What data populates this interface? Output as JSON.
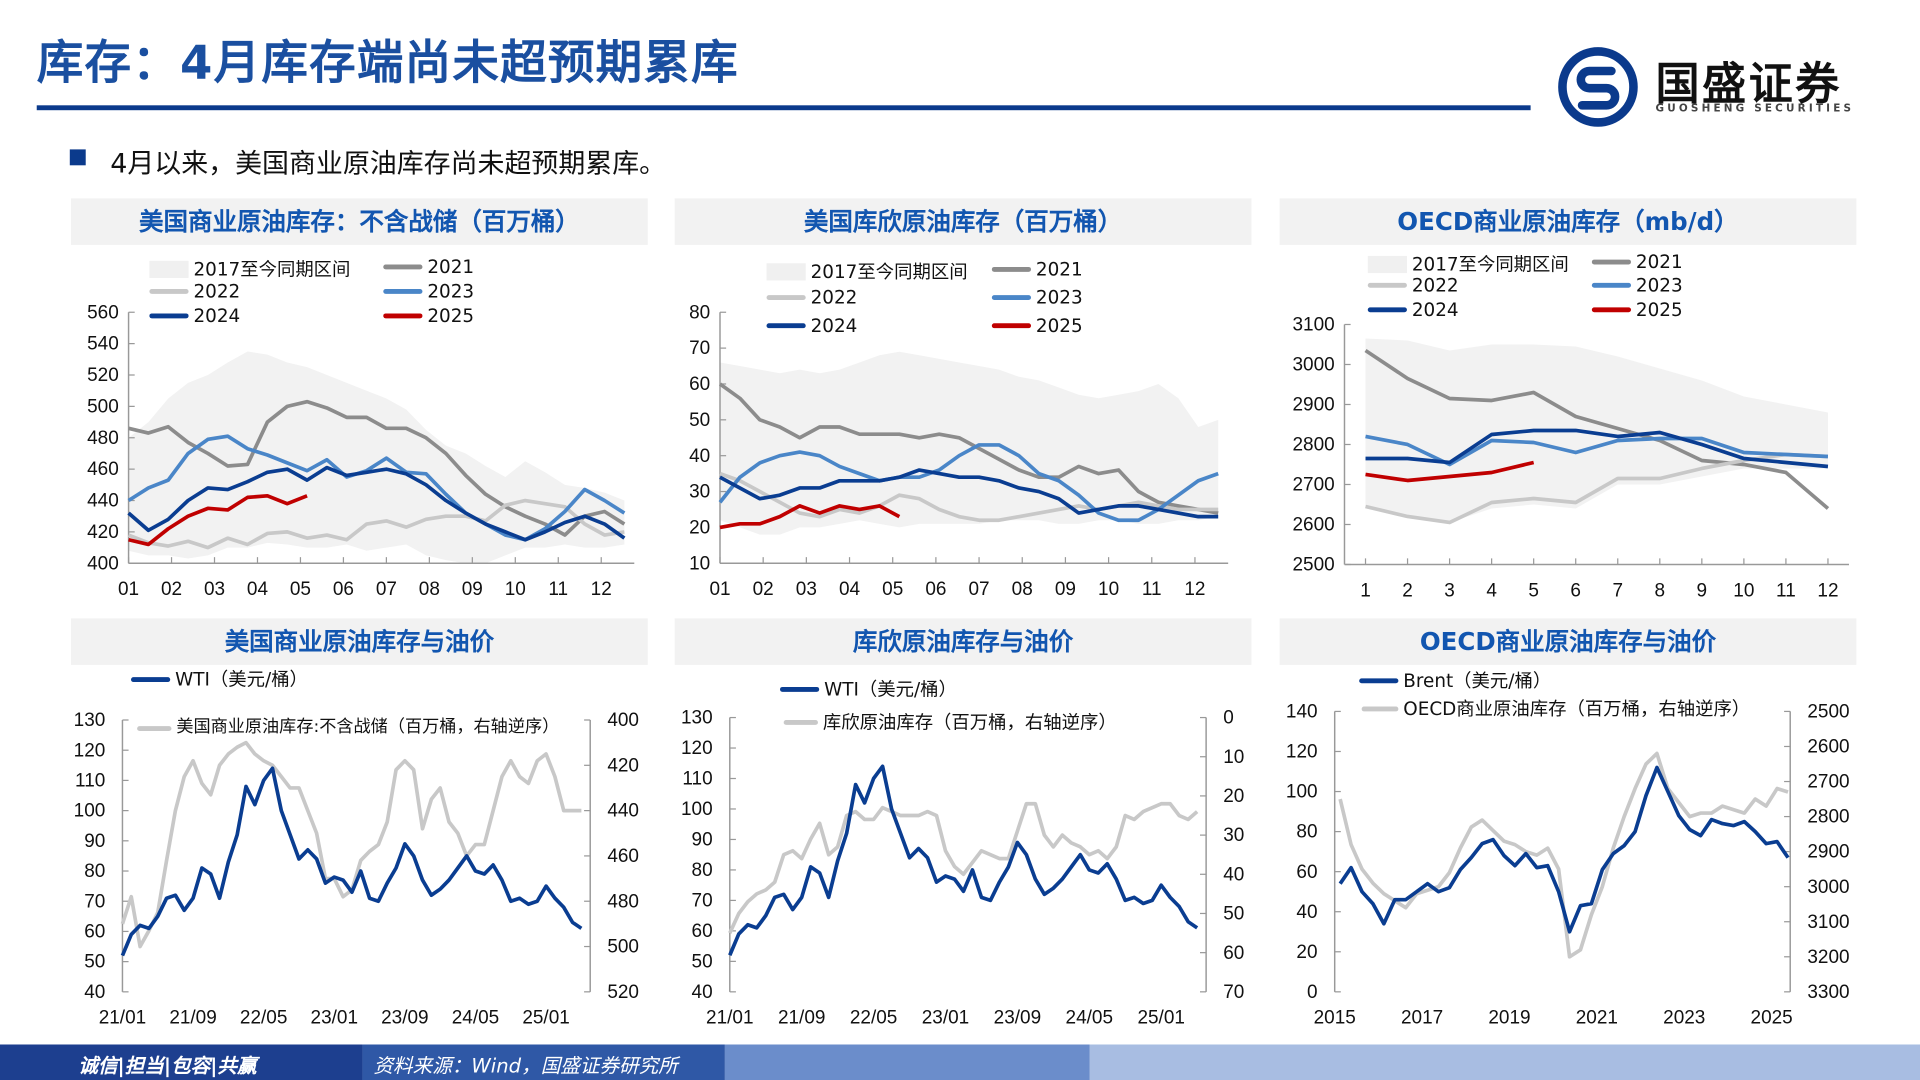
{
  "header": {
    "title": "库存：4月库存端尚未超预期累库",
    "logo_name": "国盛证券",
    "logo_en": "GUOSHENG SECURITIES",
    "accent_color": "#0b3a8c"
  },
  "bullet": "4月以来，美国商业原油库存尚未超预期累库。",
  "footer": {
    "motto": "诚信|担当|包容|共赢",
    "source": "资料来源：Wind，国盛证券研究所"
  },
  "legend_labels": {
    "band": "2017至今同期区间",
    "y2021": "2021",
    "y2022": "2022",
    "y2023": "2023",
    "y2024": "2024",
    "y2025": "2025",
    "wti": "WTI（美元/桶）",
    "brent": "Brent（美元/桶）",
    "us_inv": "美国商业原油库存:不含战储（百万桶，右轴逆序）",
    "cushing_inv": "库欣原油库存（百万桶，右轴逆序）",
    "oecd_inv": "OECD商业原油库存（百万桶，右轴逆序）"
  },
  "colors": {
    "band": "#f2f2f2",
    "y2021": "#8c8c8c",
    "y2022": "#c8c8c8",
    "y2023": "#4a86c8",
    "y2024": "#0a3d91",
    "y2025": "#c00000",
    "price": "#0a3d91",
    "inventory": "#c8c8c8"
  },
  "chart_data": [
    {
      "type": "line",
      "title": "美国商业原油库存：不含战储（百万桶）",
      "x_tick_labels": [
        "01",
        "02",
        "03",
        "04",
        "05",
        "06",
        "07",
        "08",
        "09",
        "10",
        "11",
        "12"
      ],
      "ylim": [
        400,
        560
      ],
      "y_ticks": [
        400,
        420,
        440,
        460,
        480,
        500,
        520,
        540,
        560
      ],
      "frequency": "biweekly",
      "band": {
        "name": "2017至今同期区间",
        "max": [
          480,
          490,
          505,
          515,
          520,
          528,
          535,
          533,
          528,
          525,
          520,
          515,
          510,
          505,
          498,
          485,
          475,
          470,
          462,
          455,
          465,
          458,
          450,
          448,
          445,
          440
        ],
        "min": [
          408,
          405,
          405,
          403,
          405,
          410,
          410,
          413,
          412,
          410,
          410,
          412,
          408,
          410,
          412,
          405,
          402,
          400,
          400,
          405,
          410,
          410,
          412,
          410,
          410,
          412
        ]
      },
      "series": [
        {
          "name": "2021",
          "values": [
            486,
            483,
            487,
            477,
            470,
            462,
            463,
            490,
            500,
            503,
            499,
            493,
            493,
            486,
            486,
            480,
            470,
            456,
            444,
            436,
            430,
            425,
            418,
            430,
            433,
            425
          ]
        },
        {
          "name": "2022",
          "values": [
            418,
            413,
            411,
            414,
            410,
            416,
            412,
            419,
            420,
            416,
            418,
            415,
            425,
            427,
            423,
            428,
            430,
            430,
            427,
            437,
            440,
            438,
            436,
            425,
            418,
            420
          ]
        },
        {
          "name": "2023",
          "values": [
            440,
            448,
            453,
            470,
            479,
            481,
            473,
            469,
            464,
            459,
            466,
            455,
            459,
            467,
            458,
            457,
            444,
            432,
            425,
            418,
            415,
            422,
            433,
            447,
            440,
            432
          ]
        },
        {
          "name": "2024",
          "values": [
            432,
            421,
            428,
            440,
            448,
            447,
            452,
            458,
            460,
            453,
            461,
            456,
            458,
            460,
            457,
            450,
            440,
            432,
            425,
            420,
            415,
            420,
            426,
            430,
            425,
            416
          ]
        },
        {
          "name": "2025",
          "values": [
            415,
            412,
            422,
            430,
            435,
            434,
            442,
            443,
            438,
            443
          ]
        }
      ]
    },
    {
      "type": "line",
      "title": "美国库欣原油库存（百万桶）",
      "x_tick_labels": [
        "01",
        "02",
        "03",
        "04",
        "05",
        "06",
        "07",
        "08",
        "09",
        "10",
        "11",
        "12"
      ],
      "ylim": [
        10,
        80
      ],
      "y_ticks": [
        10,
        20,
        30,
        40,
        50,
        60,
        70,
        80
      ],
      "frequency": "biweekly",
      "band": {
        "name": "2017至今同期区间",
        "max": [
          66,
          65,
          64,
          63,
          64,
          63,
          64,
          66,
          68,
          69,
          68,
          67,
          66,
          65,
          64,
          62,
          61,
          59,
          57,
          56,
          57,
          58,
          60,
          56,
          48,
          50
        ],
        "min": [
          22,
          20,
          18,
          18,
          20,
          20,
          21,
          22,
          21,
          20,
          21,
          21,
          21,
          21,
          22,
          22,
          22,
          21,
          21,
          22,
          22,
          21,
          21,
          22,
          22,
          23
        ]
      },
      "series": [
        {
          "name": "2021",
          "values": [
            60,
            56,
            50,
            48,
            45,
            48,
            48,
            46,
            46,
            46,
            45,
            46,
            45,
            42,
            39,
            36,
            34,
            34,
            37,
            35,
            36,
            30,
            27,
            26,
            25,
            24
          ]
        },
        {
          "name": "2022",
          "values": [
            35,
            33,
            30,
            27,
            24,
            23,
            25,
            24,
            26,
            29,
            28,
            25,
            23,
            22,
            22,
            23,
            24,
            25,
            26,
            25,
            26,
            27,
            26,
            25,
            25,
            25
          ]
        },
        {
          "name": "2023",
          "values": [
            27,
            34,
            38,
            40,
            41,
            40,
            37,
            35,
            33,
            34,
            34,
            36,
            40,
            43,
            43,
            40,
            35,
            33,
            29,
            24,
            22,
            22,
            25,
            29,
            33,
            35
          ]
        },
        {
          "name": "2024",
          "values": [
            34,
            31,
            28,
            29,
            31,
            31,
            33,
            33,
            33,
            34,
            36,
            35,
            34,
            34,
            33,
            31,
            30,
            28,
            24,
            25,
            26,
            26,
            25,
            24,
            23,
            23
          ]
        },
        {
          "name": "2025",
          "values": [
            20,
            21,
            21,
            23,
            26,
            24,
            26,
            25,
            26,
            23
          ]
        }
      ]
    },
    {
      "type": "line",
      "title": "OECD商业原油库存（mb/d）",
      "x_tick_labels": [
        "1",
        "2",
        "3",
        "4",
        "5",
        "6",
        "7",
        "8",
        "9",
        "10",
        "11",
        "12"
      ],
      "ylim": [
        2500,
        3100
      ],
      "y_ticks": [
        2500,
        2600,
        2700,
        2800,
        2900,
        3000,
        3100
      ],
      "frequency": "monthly",
      "band": {
        "name": "2017至今同期区间",
        "max": [
          3065,
          3060,
          3035,
          3050,
          3050,
          3045,
          3020,
          2990,
          2960,
          2920,
          2900,
          2880
        ],
        "min": [
          2645,
          2620,
          2605,
          2640,
          2650,
          2640,
          2700,
          2700,
          2720,
          2740,
          2740,
          2740
        ]
      },
      "series": [
        {
          "name": "2021",
          "values": [
            3035,
            2965,
            2915,
            2910,
            2930,
            2870,
            2840,
            2810,
            2760,
            2750,
            2730,
            2640
          ]
        },
        {
          "name": "2022",
          "values": [
            2645,
            2620,
            2605,
            2655,
            2665,
            2655,
            2715,
            2715,
            2740,
            2760,
            2775,
            2770
          ]
        },
        {
          "name": "2023",
          "values": [
            2820,
            2800,
            2750,
            2810,
            2805,
            2780,
            2810,
            2815,
            2815,
            2780,
            2775,
            2770
          ]
        },
        {
          "name": "2024",
          "values": [
            2765,
            2765,
            2755,
            2825,
            2835,
            2835,
            2820,
            2830,
            2800,
            2765,
            2755,
            2745
          ]
        },
        {
          "name": "2025",
          "values": [
            2725,
            2710,
            2720,
            2730,
            2755
          ]
        }
      ]
    },
    {
      "type": "line",
      "title": "美国商业原油库存与油价",
      "x_tick_labels": [
        "21/01",
        "21/09",
        "22/05",
        "23/01",
        "23/09",
        "24/05",
        "25/01"
      ],
      "ylim": [
        40,
        130
      ],
      "y_ticks": [
        40,
        50,
        60,
        70,
        80,
        90,
        100,
        110,
        120,
        130
      ],
      "y2lim": [
        400,
        520
      ],
      "y2_reversed": true,
      "y2_ticks": [
        400,
        420,
        440,
        460,
        480,
        500,
        520
      ],
      "start": "2021-01",
      "frequency": "monthly",
      "series": [
        {
          "name": "WTI（美元/桶）",
          "axis": "left",
          "values": [
            52,
            59,
            62,
            61,
            65,
            71,
            72,
            67,
            71,
            81,
            79,
            71,
            83,
            92,
            108,
            102,
            110,
            114,
            100,
            92,
            84,
            87,
            84,
            76,
            78,
            77,
            73,
            80,
            71,
            70,
            76,
            81,
            89,
            85,
            77,
            72,
            74,
            77,
            81,
            85,
            80,
            79,
            82,
            77,
            70,
            71,
            69,
            70,
            75,
            71,
            68,
            63,
            61
          ]
        },
        {
          "name": "美国商业原油库存:不含战储（百万桶，右轴逆序）",
          "axis": "right",
          "values": [
            490,
            478,
            500,
            493,
            485,
            462,
            440,
            425,
            418,
            428,
            433,
            420,
            415,
            412,
            410,
            415,
            418,
            420,
            425,
            430,
            430,
            440,
            450,
            470,
            470,
            478,
            475,
            462,
            458,
            455,
            445,
            422,
            418,
            422,
            448,
            435,
            430,
            445,
            450,
            460,
            455,
            455,
            440,
            425,
            418,
            425,
            428,
            418,
            415,
            425,
            440,
            440,
            440
          ]
        }
      ]
    },
    {
      "type": "line",
      "title": "库欣原油库存与油价",
      "x_tick_labels": [
        "21/01",
        "21/09",
        "22/05",
        "23/01",
        "23/09",
        "24/05",
        "25/01"
      ],
      "ylim": [
        40,
        130
      ],
      "y_ticks": [
        40,
        50,
        60,
        70,
        80,
        90,
        100,
        110,
        120,
        130
      ],
      "y2lim": [
        0,
        70
      ],
      "y2_reversed": true,
      "y2_ticks": [
        0,
        10,
        20,
        30,
        40,
        50,
        60,
        70
      ],
      "start": "2021-01",
      "frequency": "monthly",
      "series": [
        {
          "name": "WTI（美元/桶）",
          "axis": "left",
          "values": [
            52,
            59,
            62,
            61,
            65,
            71,
            72,
            67,
            71,
            81,
            79,
            71,
            83,
            92,
            108,
            102,
            110,
            114,
            100,
            92,
            84,
            87,
            84,
            76,
            78,
            77,
            73,
            80,
            71,
            70,
            76,
            81,
            89,
            85,
            77,
            72,
            74,
            77,
            81,
            85,
            80,
            79,
            82,
            77,
            70,
            71,
            69,
            70,
            75,
            71,
            68,
            63,
            61
          ]
        },
        {
          "name": "库欣原油库存（百万桶，右轴逆序）",
          "axis": "right",
          "values": [
            55,
            50,
            47,
            45,
            44,
            42,
            35,
            34,
            36,
            31,
            27,
            35,
            33,
            25,
            24,
            26,
            26,
            23,
            24,
            25,
            25,
            25,
            24,
            25,
            34,
            38,
            40,
            37,
            34,
            35,
            36,
            36,
            29,
            22,
            22,
            30,
            33,
            30,
            32,
            33,
            35,
            34,
            36,
            33,
            25,
            26,
            24,
            23,
            22,
            22,
            25,
            26,
            24
          ]
        }
      ]
    },
    {
      "type": "line",
      "title": "OECD商业原油库存与油价",
      "x_tick_labels": [
        "2015",
        "2017",
        "2019",
        "2021",
        "2023",
        "2025"
      ],
      "ylim": [
        0,
        140
      ],
      "y_ticks": [
        0,
        20,
        40,
        60,
        80,
        100,
        120,
        140
      ],
      "y2lim": [
        2500,
        3300
      ],
      "y2_reversed": true,
      "y2_ticks": [
        2500,
        2600,
        2700,
        2800,
        2900,
        3000,
        3100,
        3200,
        3300
      ],
      "start": "2015Q1",
      "frequency": "quarterly",
      "series": [
        {
          "name": "Brent（美元/桶）",
          "axis": "left",
          "values": [
            54,
            62,
            50,
            44,
            34,
            46,
            46,
            50,
            54,
            50,
            52,
            61,
            67,
            74,
            76,
            68,
            63,
            69,
            62,
            63,
            50,
            30,
            43,
            44,
            61,
            69,
            73,
            80,
            98,
            112,
            100,
            88,
            81,
            78,
            86,
            84,
            83,
            85,
            80,
            74,
            75,
            67
          ]
        },
        {
          "name": "OECD商业原油库存（百万桶，右轴逆序）",
          "axis": "right",
          "values": [
            2750,
            2880,
            2950,
            2990,
            3020,
            3040,
            3060,
            3020,
            3010,
            3000,
            2960,
            2890,
            2830,
            2810,
            2840,
            2870,
            2880,
            2900,
            2910,
            2890,
            2950,
            3200,
            3180,
            3080,
            3000,
            2890,
            2800,
            2720,
            2650,
            2620,
            2720,
            2760,
            2800,
            2790,
            2790,
            2770,
            2780,
            2790,
            2750,
            2770,
            2720,
            2730
          ]
        }
      ]
    }
  ]
}
